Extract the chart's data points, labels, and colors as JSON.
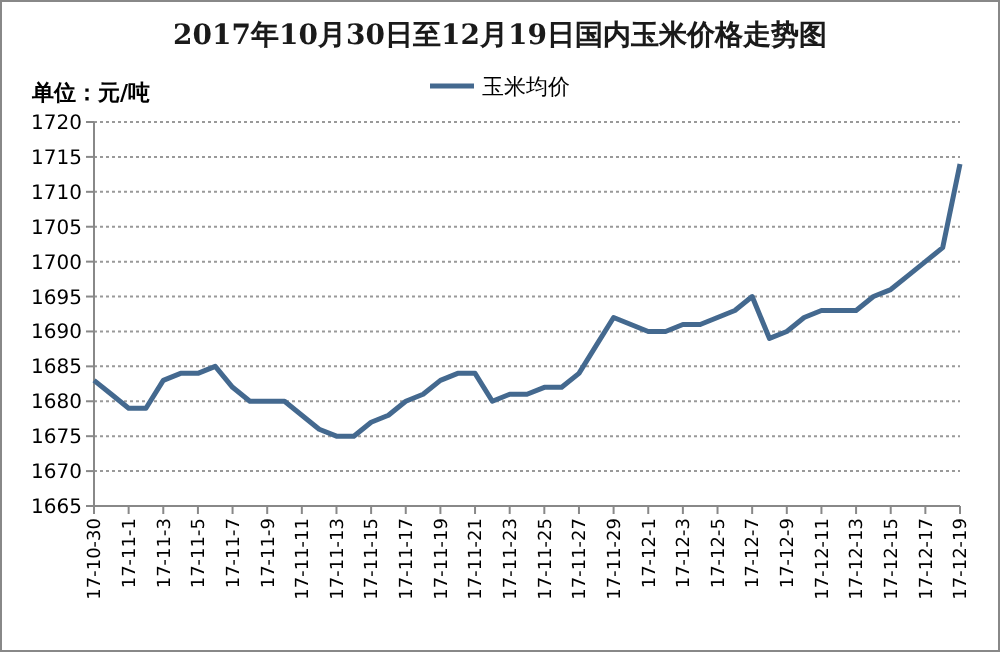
{
  "chart_data": {
    "type": "line",
    "title": "2017年10月30日至12月19日国内玉米价格走势图",
    "ylabel": "单位：元/吨",
    "categories": [
      "17-10-30",
      null,
      "17-11-1",
      null,
      "17-11-3",
      null,
      "17-11-5",
      null,
      "17-11-7",
      null,
      "17-11-9",
      null,
      "17-11-11",
      null,
      "17-11-13",
      null,
      "17-11-15",
      null,
      "17-11-17",
      null,
      "17-11-19",
      null,
      "17-11-21",
      null,
      "17-11-23",
      null,
      "17-11-25",
      null,
      "17-11-27",
      null,
      "17-11-29",
      null,
      "17-12-1",
      null,
      "17-12-3",
      null,
      "17-12-5",
      null,
      "17-12-7",
      null,
      "17-12-9",
      null,
      "17-12-11",
      null,
      "17-12-13",
      null,
      "17-12-15",
      null,
      "17-12-17",
      null,
      "17-12-19"
    ],
    "series": [
      {
        "name": "玉米均价",
        "color": "#44698f",
        "values": [
          1683,
          1681,
          1679,
          1679,
          1683,
          1684,
          1684,
          1685,
          1682,
          1680,
          1680,
          1680,
          1678,
          1676,
          1675,
          1675,
          1677,
          1678,
          1680,
          1681,
          1683,
          1684,
          1684,
          1680,
          1681,
          1681,
          1682,
          1682,
          1684,
          1688,
          1692,
          1691,
          1690,
          1690,
          1691,
          1691,
          1692,
          1693,
          1695,
          1689,
          1690,
          1692,
          1693,
          1693,
          1693,
          1695,
          1696,
          1698,
          1700,
          1702,
          1714
        ]
      }
    ],
    "ylim": [
      1665,
      1720
    ],
    "yticks": [
      1665,
      1670,
      1675,
      1680,
      1685,
      1690,
      1695,
      1700,
      1705,
      1710,
      1715,
      1720
    ],
    "grid": "y",
    "legend": "top",
    "marker": "none",
    "line_style": "solid"
  }
}
